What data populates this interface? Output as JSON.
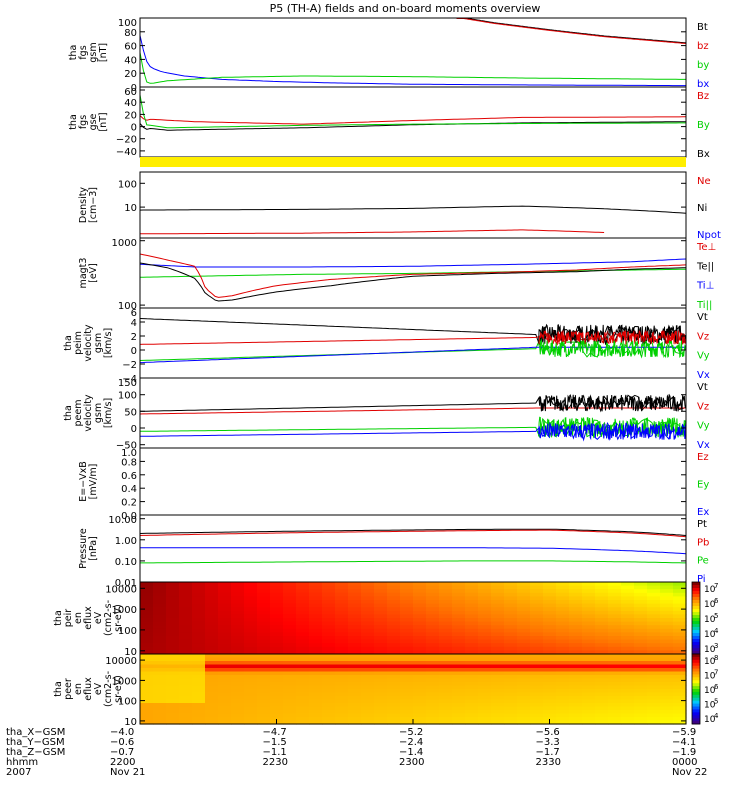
{
  "title": "P5 (TH-A) fields and on-board moments overview",
  "colors": {
    "black": "#000000",
    "red": "#e00000",
    "green": "#00d000",
    "blue": "#0000ff",
    "yellow": "#ffee00"
  },
  "panels": [
    {
      "id": "fgs-gsm",
      "ylabel": [
        "tha",
        "fgs",
        "gsm",
        "[nT]"
      ],
      "scale": "linear",
      "ylim": [
        0,
        100
      ],
      "ticks": [
        "100",
        "80",
        "60",
        "40",
        "20",
        "0"
      ],
      "tick_values": [
        100,
        80,
        60,
        40,
        20,
        0
      ],
      "legend": [
        {
          "label": "Bt",
          "color": "black"
        },
        {
          "label": "bz",
          "color": "red"
        },
        {
          "label": "by",
          "color": "green"
        },
        {
          "label": "bx",
          "color": "blue"
        }
      ],
      "series": [
        {
          "name": "bx",
          "color": "blue",
          "x": [
            0,
            0.01,
            0.02,
            0.04,
            0.08,
            0.15,
            0.25,
            0.35,
            0.5,
            0.7,
            1.0
          ],
          "y": [
            75,
            40,
            28,
            22,
            16,
            11,
            8,
            6,
            4,
            3,
            2
          ]
        },
        {
          "name": "by",
          "color": "green",
          "x": [
            0,
            0.01,
            0.02,
            0.05,
            0.15,
            0.3,
            0.5,
            0.7,
            1.0
          ],
          "y": [
            50,
            8,
            5,
            9,
            14,
            16,
            15,
            13,
            11
          ]
        },
        {
          "name": "Bt",
          "color": "black",
          "x": [
            0.58,
            0.65,
            0.75,
            0.85,
            1.0
          ],
          "y": [
            102,
            93,
            83,
            74,
            64
          ]
        },
        {
          "name": "bz",
          "color": "red",
          "x": [
            0.58,
            0.65,
            0.75,
            0.85,
            1.0
          ],
          "y": [
            101,
            92,
            82,
            73,
            63
          ]
        }
      ]
    },
    {
      "id": "fgs-gse",
      "ylabel": [
        "tha",
        "fgs",
        "gse",
        "[nT]"
      ],
      "scale": "linear",
      "ylim": [
        -50,
        65
      ],
      "ticks": [
        "60",
        "40",
        "20",
        "0",
        "−20",
        "−40"
      ],
      "tick_values": [
        60,
        40,
        20,
        0,
        -20,
        -40
      ],
      "legend": [
        {
          "label": "Bz",
          "color": "red"
        },
        {
          "label": "By",
          "color": "green"
        },
        {
          "label": "Bx",
          "color": "black"
        }
      ],
      "series": [
        {
          "name": "Bz",
          "color": "red",
          "x": [
            0,
            0.01,
            0.02,
            0.1,
            0.3,
            0.5,
            0.7,
            1.0
          ],
          "y": [
            18,
            10,
            12,
            8,
            4,
            10,
            15,
            16
          ]
        },
        {
          "name": "Bx",
          "color": "black",
          "x": [
            0,
            0.01,
            0.02,
            0.05,
            0.3,
            0.5,
            0.7,
            1.0
          ],
          "y": [
            5,
            -5,
            -3,
            -6,
            -2,
            3,
            6,
            8
          ]
        },
        {
          "name": "By",
          "color": "green",
          "x": [
            0,
            0.01,
            0.02,
            0.05,
            0.3,
            0.5,
            0.7,
            1.0
          ],
          "y": [
            52,
            3,
            2,
            -2,
            2,
            4,
            5,
            6
          ]
        }
      ]
    },
    {
      "id": "mode-bar",
      "ylabel": [],
      "scale": "linear",
      "ylim": [
        0,
        1
      ],
      "ticks": [],
      "tick_values": [],
      "legend": [],
      "series": []
    },
    {
      "id": "density",
      "ylabel": [
        "Density",
        "[cm−3]"
      ],
      "scale": "log",
      "ylim": [
        0.5,
        300
      ],
      "ticks": [
        "100",
        "10"
      ],
      "tick_values": [
        100,
        10
      ],
      "legend": [
        {
          "label": "Ne",
          "color": "red"
        },
        {
          "label": "Ni",
          "color": "black"
        },
        {
          "label": "Npot",
          "color": "blue"
        }
      ],
      "series": [
        {
          "name": "Ni",
          "color": "black",
          "x": [
            0,
            0.3,
            0.5,
            0.7,
            0.85,
            1.0
          ],
          "y": [
            7.5,
            8.0,
            8.8,
            11,
            8.5,
            5.5
          ]
        },
        {
          "name": "Ne",
          "color": "red",
          "x": [
            0,
            0.3,
            0.5,
            0.7,
            0.85
          ],
          "y": [
            0.75,
            0.8,
            0.9,
            1.1,
            0.85
          ]
        }
      ]
    },
    {
      "id": "temperature",
      "ylabel": [
        "magt3",
        "[eV]"
      ],
      "scale": "log",
      "ylim": [
        90,
        1100
      ],
      "ticks": [
        "1000",
        "100"
      ],
      "tick_values": [
        1000,
        100
      ],
      "legend": [
        {
          "label": "Te⊥",
          "color": "red"
        },
        {
          "label": "Te||",
          "color": "black"
        },
        {
          "label": "Ti⊥",
          "color": "blue"
        },
        {
          "label": "Ti||",
          "color": "green"
        }
      ],
      "series": [
        {
          "name": "Ti||",
          "color": "green",
          "x": [
            0,
            0.1,
            0.3,
            0.5,
            0.7,
            1.0
          ],
          "y": [
            270,
            280,
            300,
            310,
            330,
            360
          ]
        },
        {
          "name": "Ti⊥",
          "color": "blue",
          "x": [
            0,
            0.1,
            0.3,
            0.5,
            0.7,
            0.9,
            1.0
          ],
          "y": [
            430,
            390,
            390,
            400,
            430,
            470,
            520
          ]
        },
        {
          "name": "Te⊥",
          "color": "red",
          "x": [
            0,
            0.05,
            0.1,
            0.12,
            0.14,
            0.17,
            0.25,
            0.35,
            0.5,
            0.65,
            0.8,
            0.9,
            1.0
          ],
          "y": [
            620,
            500,
            400,
            180,
            130,
            140,
            200,
            250,
            300,
            320,
            350,
            390,
            420
          ]
        },
        {
          "name": "Te||",
          "color": "black",
          "x": [
            0,
            0.05,
            0.1,
            0.12,
            0.14,
            0.17,
            0.25,
            0.35,
            0.5,
            0.65,
            0.8,
            0.9,
            1.0
          ],
          "y": [
            450,
            380,
            260,
            150,
            115,
            120,
            160,
            200,
            280,
            310,
            330,
            360,
            380
          ]
        }
      ]
    },
    {
      "id": "peim-velocity",
      "ylabel": [
        "tha",
        "peim",
        "velocity",
        "gsm",
        "[km/s]"
      ],
      "scale": "linear",
      "ylim": [
        -4,
        6
      ],
      "ticks": [
        "6",
        "4",
        "2",
        "0",
        "−2",
        "−4"
      ],
      "tick_values": [
        6,
        4,
        2,
        0,
        -2,
        -4
      ],
      "legend": [
        {
          "label": "Vt",
          "color": "black"
        },
        {
          "label": "Vz",
          "color": "red"
        },
        {
          "label": "Vy",
          "color": "green"
        },
        {
          "label": "Vx",
          "color": "blue"
        }
      ],
      "noise_start": 0.73,
      "series": [
        {
          "name": "Vt",
          "color": "black",
          "x": [
            0,
            0.73,
            1.0
          ],
          "y": [
            4.5,
            2.2,
            2.2
          ],
          "noise": 1.4
        },
        {
          "name": "Vz",
          "color": "red",
          "x": [
            0,
            0.73,
            1.0
          ],
          "y": [
            0.8,
            1.8,
            1.8
          ],
          "noise": 1.0
        },
        {
          "name": "Vy",
          "color": "green",
          "x": [
            0,
            0.73,
            1.0
          ],
          "y": [
            -1.5,
            0.2,
            0.2
          ],
          "noise": 1.2
        },
        {
          "name": "Vx",
          "color": "blue",
          "x": [
            0,
            0.73,
            1.0
          ],
          "y": [
            -1.8,
            0.4,
            0.4
          ],
          "noise": 0
        }
      ]
    },
    {
      "id": "peem-velocity",
      "ylabel": [
        "tha",
        "peem",
        "velocity",
        "gsm",
        "[km/s]"
      ],
      "scale": "linear",
      "ylim": [
        -60,
        150
      ],
      "ticks": [
        "150",
        "100",
        "50",
        "0",
        "−50"
      ],
      "tick_values": [
        150,
        100,
        50,
        0,
        -50
      ],
      "legend": [
        {
          "label": "Vt",
          "color": "black"
        },
        {
          "label": "Vz",
          "color": "red"
        },
        {
          "label": "Vy",
          "color": "green"
        },
        {
          "label": "Vx",
          "color": "blue"
        }
      ],
      "noise_start": 0.73,
      "series": [
        {
          "name": "Vt",
          "color": "black",
          "x": [
            0,
            0.73,
            1.0
          ],
          "y": [
            50,
            75,
            75
          ],
          "noise": 25
        },
        {
          "name": "Vz",
          "color": "red",
          "x": [
            0,
            0.73,
            1.0
          ],
          "y": [
            42,
            60,
            60
          ],
          "noise": 0
        },
        {
          "name": "Vy",
          "color": "green",
          "x": [
            0,
            0.73,
            1.0
          ],
          "y": [
            -10,
            2,
            2
          ],
          "noise": 30
        },
        {
          "name": "Vx",
          "color": "blue",
          "x": [
            0,
            0.73,
            1.0
          ],
          "y": [
            -25,
            -10,
            -10
          ],
          "noise": 25
        }
      ]
    },
    {
      "id": "efield",
      "ylabel": [
        "E=−VxB",
        "[mV/m]"
      ],
      "scale": "linear",
      "ylim": [
        0,
        1
      ],
      "ticks": [
        "1.0",
        "0.8",
        "0.6",
        "0.4",
        "0.2",
        "0.0"
      ],
      "tick_values": [
        1.0,
        0.8,
        0.6,
        0.4,
        0.2,
        0.0
      ],
      "legend": [
        {
          "label": "Ez",
          "color": "red"
        },
        {
          "label": "Ey",
          "color": "green"
        },
        {
          "label": "Ex",
          "color": "blue"
        }
      ],
      "series": []
    },
    {
      "id": "pressure",
      "ylabel": [
        "Pressure",
        "[nPa]"
      ],
      "scale": "log",
      "ylim": [
        0.01,
        15
      ],
      "ticks": [
        "10.00",
        "1.00",
        "0.10",
        "0.01"
      ],
      "tick_values": [
        10,
        1,
        0.1,
        0.01
      ],
      "legend": [
        {
          "label": "Pt",
          "color": "black"
        },
        {
          "label": "Pb",
          "color": "red"
        },
        {
          "label": "Pe",
          "color": "green"
        },
        {
          "label": "Pi",
          "color": "blue"
        }
      ],
      "series": [
        {
          "name": "Pt",
          "color": "black",
          "x": [
            0,
            0.3,
            0.6,
            0.75,
            0.9,
            1.0
          ],
          "y": [
            2.0,
            2.6,
            3.1,
            3.2,
            2.4,
            1.6
          ]
        },
        {
          "name": "Pb",
          "color": "red",
          "x": [
            0,
            0.3,
            0.6,
            0.75,
            0.9,
            1.0
          ],
          "y": [
            1.6,
            2.2,
            2.7,
            2.9,
            2.1,
            1.4
          ]
        },
        {
          "name": "Pi",
          "color": "blue",
          "x": [
            0,
            0.3,
            0.6,
            0.75,
            0.9,
            1.0
          ],
          "y": [
            0.42,
            0.42,
            0.42,
            0.4,
            0.3,
            0.22
          ]
        },
        {
          "name": "Pe",
          "color": "green",
          "x": [
            0,
            0.3,
            0.6,
            0.75,
            0.9,
            1.0
          ],
          "y": [
            0.08,
            0.09,
            0.1,
            0.1,
            0.09,
            0.08
          ]
        }
      ]
    },
    {
      "id": "peir-spectrogram",
      "ylabel": [
        "tha",
        "peir",
        "en",
        "eflux",
        "eV",
        "(cm2-s-",
        "sr-eV)"
      ],
      "scale": "log",
      "ylim": [
        7,
        20000
      ],
      "ticks": [
        "10000",
        "1000",
        "100",
        "10"
      ],
      "tick_values": [
        10000,
        1000,
        100,
        10
      ],
      "legend": [],
      "series": [],
      "spectrogram": "ion",
      "colorbar": {
        "labels": [
          "10",
          "10",
          "10",
          "10",
          "10"
        ],
        "exponents": [
          "7",
          "6",
          "5",
          "4",
          "3"
        ]
      }
    },
    {
      "id": "peer-spectrogram",
      "ylabel": [
        "tha",
        "peer",
        "en",
        "eflux",
        "eV",
        "(cm2-s-",
        "sr-eV)"
      ],
      "scale": "log",
      "ylim": [
        7,
        20000
      ],
      "ticks": [
        "10000",
        "1000",
        "100",
        "10"
      ],
      "tick_values": [
        10000,
        1000,
        100,
        10
      ],
      "legend": [],
      "series": [],
      "spectrogram": "electron",
      "colorbar": {
        "labels": [
          "10",
          "10",
          "10",
          "10",
          "10"
        ],
        "exponents": [
          "8",
          "7",
          "6",
          "5",
          "4"
        ]
      }
    }
  ],
  "xaxis": {
    "row_labels": [
      "tha_X−GSM",
      "tha_Y−GSM",
      "tha_Z−GSM",
      "hhmm",
      "2007"
    ],
    "columns": [
      [
        "−4.0",
        "−0.6",
        "−0.7",
        "2200",
        "Nov 21"
      ],
      [
        "−4.7",
        "−1.5",
        "−1.1",
        "2230",
        ""
      ],
      [
        "−5.2",
        "−2.4",
        "−1.4",
        "2300",
        ""
      ],
      [
        "−5.6",
        "−3.3",
        "−1.7",
        "2330",
        ""
      ],
      [
        "−5.9",
        "−4.1",
        "−1.9",
        "0000",
        "Nov 22"
      ]
    ]
  }
}
